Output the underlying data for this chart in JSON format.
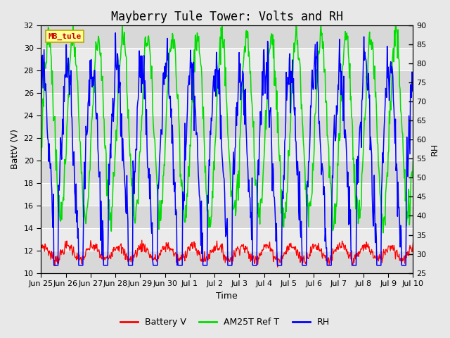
{
  "title": "Mayberry Tule Tower: Volts and RH",
  "xlabel": "Time",
  "ylabel_left": "BattV (V)",
  "ylabel_right": "RH",
  "ylim_left": [
    10,
    32
  ],
  "ylim_right": [
    25,
    90
  ],
  "yticks_left": [
    10,
    12,
    14,
    16,
    18,
    20,
    22,
    24,
    26,
    28,
    30,
    32
  ],
  "yticks_right": [
    25,
    30,
    35,
    40,
    45,
    50,
    55,
    60,
    65,
    70,
    75,
    80,
    85,
    90
  ],
  "xtick_labels": [
    "Jun 25",
    "Jun 26",
    "Jun 27",
    "Jun 28",
    "Jun 29",
    "Jun 30",
    "Jul 1",
    "Jul 2",
    "Jul 3",
    "Jul 4",
    "Jul 5",
    "Jul 6",
    "Jul 7",
    "Jul 8",
    "Jul 9",
    "Jul 10"
  ],
  "color_battery": "#ff0000",
  "color_am25t": "#00dd00",
  "color_rh": "#0000ff",
  "color_background": "#e8e8e8",
  "color_plot_bg_light": "#ebebeb",
  "color_plot_bg_dark": "#d8d8d8",
  "legend_labels": [
    "Battery V",
    "AM25T Ref T",
    "RH"
  ],
  "station_label": "MB_tule",
  "station_label_bg": "#ffff99",
  "station_label_border": "#bbaa00",
  "station_label_color": "#cc0000",
  "title_fontsize": 12,
  "axis_fontsize": 9,
  "tick_fontsize": 8,
  "legend_fontsize": 9
}
